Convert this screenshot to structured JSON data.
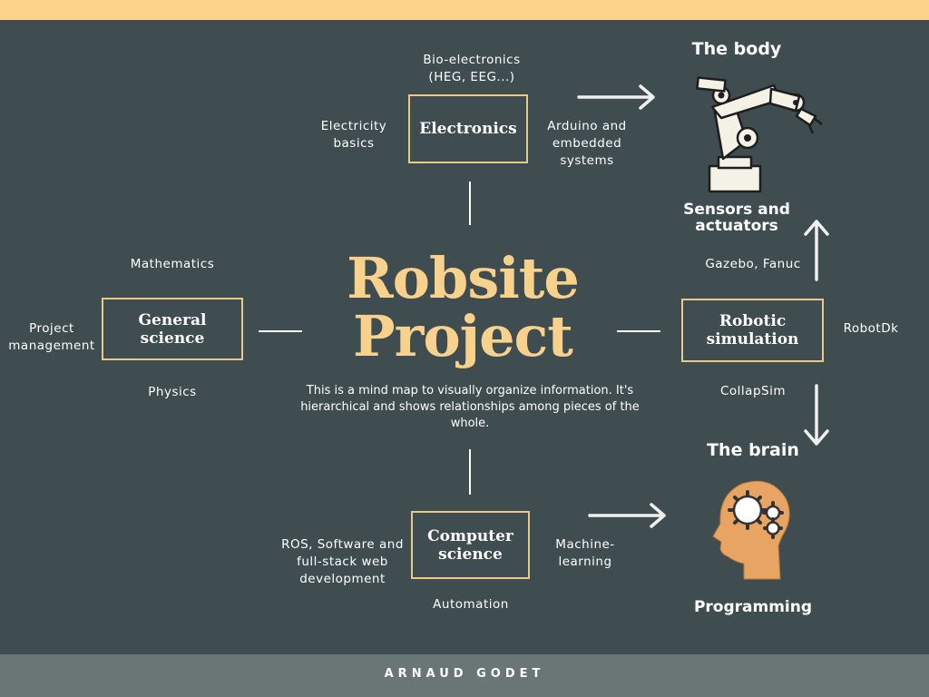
{
  "title": "Robsite\nProject",
  "description": "This is a mind map to visually organize information. It's hierarchical and shows relationships among pieces of the whole.",
  "footer": "ARNAUD GODET",
  "electronics": {
    "box": "Electronics",
    "top": "Bio-electronics\n(HEG, EEG...)",
    "left": "Electricity\nbasics",
    "right": "Arduino and\nembedded\nsystems"
  },
  "general_science": {
    "box": "General\nscience",
    "top": "Mathematics",
    "left": "Project\nmanagement",
    "bottom": "Physics"
  },
  "computer_science": {
    "box": "Computer\nscience",
    "left": "ROS, Software and\nfull-stack web\ndevelopment",
    "right": "Machine-\nlearning",
    "bottom": "Automation"
  },
  "robotic_simulation": {
    "box": "Robotic\nsimulation",
    "top": "Gazebo, Fanuc",
    "right": "RobotDk",
    "bottom": "CollapSim"
  },
  "body": {
    "heading": "The body",
    "caption": "Sensors and\nactuators",
    "icon": "robot-arm-icon"
  },
  "brain": {
    "heading": "The brain",
    "caption": "Programming",
    "icon": "brain-gears-icon"
  },
  "colors": {
    "background": "#3f4d50",
    "accent": "#f8d18c",
    "box_border": "#e9c98a",
    "footer": "#6a7575",
    "top_bar": "#fdd28a"
  }
}
